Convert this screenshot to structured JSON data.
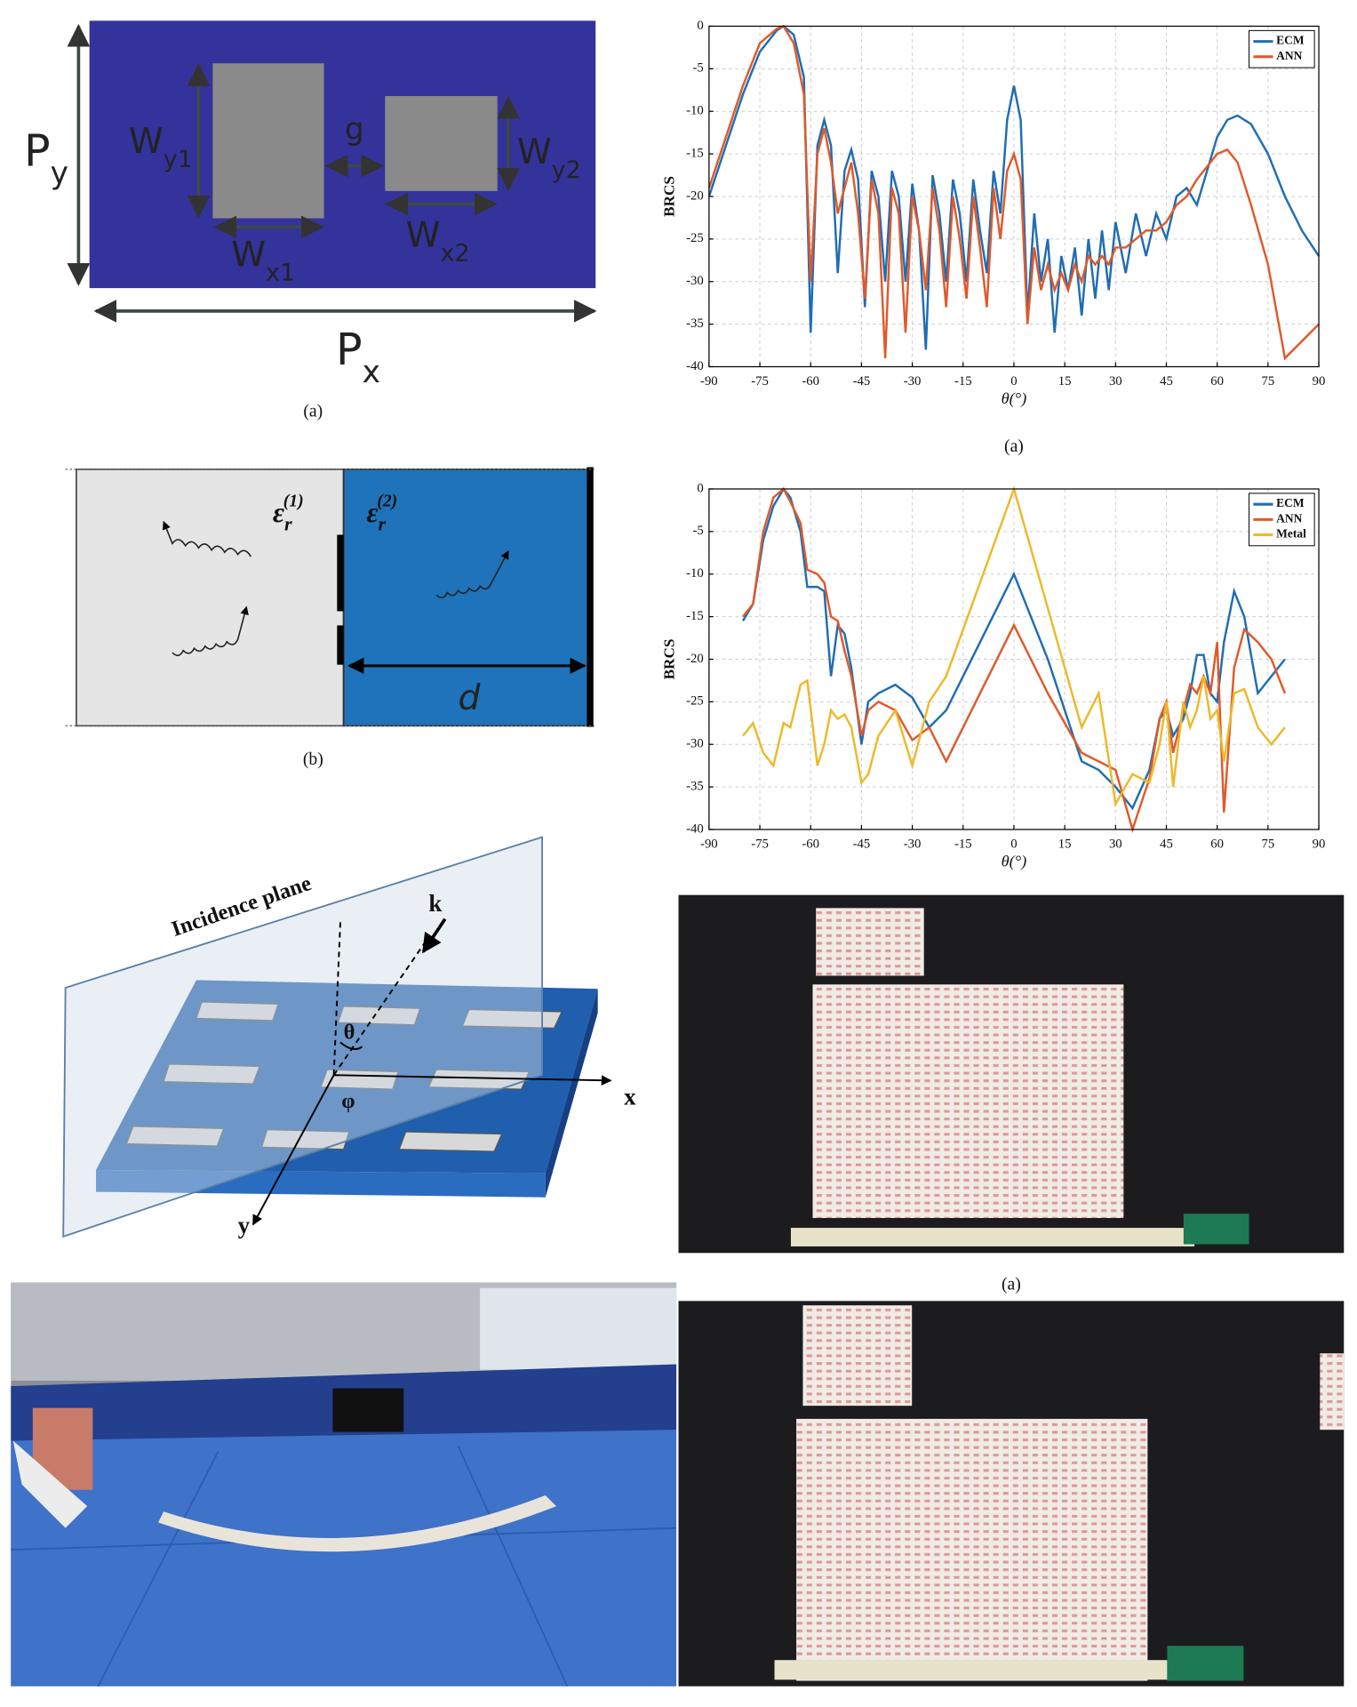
{
  "figures": {
    "unit_cell": {
      "labels": [
        {
          "main": "P",
          "sub": "y"
        },
        {
          "main": "P",
          "sub": "x"
        },
        {
          "main": "W",
          "sub": "y1"
        },
        {
          "main": "W",
          "sub": "y2"
        },
        {
          "main": "W",
          "sub": "x1"
        },
        {
          "main": "W",
          "sub": "x2"
        }
      ],
      "gap": "g",
      "caption": "(a)"
    },
    "layers": {
      "eps1": {
        "main": "ε",
        "sub": "r",
        "sup": "(1)"
      },
      "eps2": {
        "main": "ε",
        "sub": "r",
        "sup": "(2)"
      },
      "d": "d",
      "caption": "(b)"
    },
    "incidence": {
      "plane": "Incidence plane",
      "k": "k",
      "theta": "θ",
      "phi": "φ",
      "x": "x",
      "y": "y"
    },
    "photo_caption": "(a)"
  },
  "chart_data": [
    {
      "type": "line",
      "caption": "(a)",
      "ylabel": "BRCS",
      "xlabel": "θ(°)",
      "xlim": [
        -90,
        90
      ],
      "ylim": [
        -40,
        0
      ],
      "xticks": [
        -90,
        -75,
        -60,
        -45,
        -30,
        -15,
        0,
        15,
        30,
        45,
        60,
        75,
        90
      ],
      "yticks": [
        0,
        -5,
        -10,
        -15,
        -20,
        -25,
        -30,
        -35,
        -40
      ],
      "grid": true,
      "legend": "upper right",
      "x": [
        -90,
        -85,
        -80,
        -75,
        -70,
        -68,
        -65,
        -62,
        -60,
        -58,
        -56,
        -54,
        -52,
        -50,
        -48,
        -46,
        -44,
        -42,
        -40,
        -38,
        -36,
        -34,
        -32,
        -30,
        -28,
        -26,
        -24,
        -22,
        -20,
        -18,
        -16,
        -14,
        -12,
        -10,
        -8,
        -6,
        -4,
        -2,
        0,
        2,
        4,
        6,
        8,
        10,
        12,
        14,
        16,
        18,
        20,
        22,
        24,
        26,
        28,
        30,
        33,
        36,
        39,
        42,
        45,
        48,
        51,
        54,
        57,
        60,
        63,
        66,
        70,
        75,
        80,
        85,
        90
      ],
      "series": [
        {
          "name": "ECM",
          "color": "#1f6db3",
          "values": [
            -20,
            -14,
            -8,
            -3,
            -0.5,
            0,
            -1,
            -6,
            -36,
            -14,
            -11,
            -14,
            -29,
            -17,
            -14.5,
            -18,
            -33,
            -17,
            -20,
            -30,
            -17,
            -20,
            -30,
            -18.5,
            -24,
            -38,
            -17.5,
            -22,
            -30,
            -18,
            -22,
            -30,
            -18,
            -24,
            -29,
            -17,
            -22,
            -11,
            -7,
            -11,
            -34,
            -22,
            -30,
            -25,
            -36,
            -27,
            -31,
            -26,
            -34,
            -25,
            -32,
            -24,
            -31,
            -23,
            -29,
            -22,
            -27,
            -22,
            -25,
            -20,
            -19,
            -21,
            -17,
            -13,
            -11,
            -10.5,
            -11.5,
            -15,
            -20,
            -24,
            -27
          ]
        },
        {
          "name": "ANN",
          "color": "#e0592a",
          "values": [
            -19,
            -13,
            -7,
            -2,
            -0.3,
            0,
            -2,
            -8,
            -30,
            -15,
            -12,
            -16,
            -22,
            -19,
            -16,
            -22,
            -32,
            -18,
            -22,
            -39,
            -19,
            -22,
            -36,
            -20,
            -24,
            -31,
            -19,
            -24,
            -33,
            -20,
            -25,
            -32,
            -20,
            -26,
            -33,
            -19,
            -25,
            -17,
            -15,
            -18,
            -35,
            -26,
            -31,
            -28,
            -31,
            -29,
            -31,
            -28,
            -30,
            -27,
            -28,
            -27,
            -28,
            -26,
            -26,
            -25,
            -24,
            -24,
            -23,
            -21,
            -20,
            -18,
            -16.5,
            -15,
            -14.5,
            -16,
            -21,
            -28,
            -39,
            -37,
            -35
          ]
        }
      ]
    },
    {
      "type": "line",
      "ylabel": "BRCS",
      "xlabel": "θ(°)",
      "xlim": [
        -90,
        90
      ],
      "ylim": [
        -40,
        0
      ],
      "xticks": [
        -90,
        -75,
        -60,
        -45,
        -30,
        -15,
        0,
        15,
        30,
        45,
        60,
        75,
        90
      ],
      "yticks": [
        0,
        -5,
        -10,
        -15,
        -20,
        -25,
        -30,
        -35,
        -40
      ],
      "grid": true,
      "legend": "upper right",
      "x": [
        -80,
        -77,
        -74,
        -71,
        -68,
        -66,
        -63,
        -61,
        -58,
        -56,
        -54,
        -52,
        -50,
        -48,
        -45,
        -43,
        -40,
        -35,
        -30,
        -25,
        -20,
        -10,
        0,
        10,
        20,
        25,
        30,
        35,
        40,
        43,
        45,
        47,
        50,
        52,
        54,
        56,
        58,
        60,
        62,
        65,
        68,
        72,
        76,
        80
      ],
      "series": [
        {
          "name": "ECM",
          "color": "#1f6db3",
          "values": [
            -15.5,
            -13.5,
            -6,
            -2,
            0,
            -1,
            -5,
            -11.5,
            -11.5,
            -12,
            -22,
            -16,
            -17,
            -21,
            -30,
            -25,
            -24,
            -23,
            -24.5,
            -28,
            -26,
            -18,
            -10,
            -20,
            -32,
            -33,
            -35,
            -37.5,
            -33,
            -27,
            -26,
            -29,
            -27,
            -24,
            -19.5,
            -19.5,
            -24,
            -25,
            -18,
            -12,
            -15,
            -24,
            -22,
            -20
          ]
        },
        {
          "name": "ANN",
          "color": "#e0592a",
          "values": [
            -15,
            -13.5,
            -5,
            -1,
            0,
            -1.5,
            -4,
            -9.5,
            -10,
            -11,
            -15,
            -15.5,
            -19,
            -22,
            -29,
            -26,
            -25,
            -26,
            -29.5,
            -28,
            -32,
            -24,
            -16,
            -24,
            -31,
            -32,
            -33,
            -40,
            -34,
            -27,
            -25,
            -31,
            -26,
            -23,
            -24,
            -22,
            -24,
            -18,
            -38,
            -21,
            -16.5,
            -18,
            -20,
            -24
          ]
        },
        {
          "name": "Metal",
          "color": "#ecb92a",
          "values": [
            -29,
            -27.5,
            -31,
            -32.5,
            -27.5,
            -28,
            -23,
            -22.5,
            -32.5,
            -30,
            -26,
            -27,
            -26.5,
            -28,
            -34.5,
            -33.5,
            -29,
            -26,
            -32.5,
            -25,
            -22,
            -11,
            0,
            -14,
            -28,
            -24,
            -37,
            -33.5,
            -34.5,
            -30,
            -25,
            -35,
            -25,
            -28,
            -26,
            -22,
            -27,
            -26,
            -32,
            -24,
            -23.5,
            -28,
            -30,
            -28
          ]
        }
      ]
    }
  ]
}
